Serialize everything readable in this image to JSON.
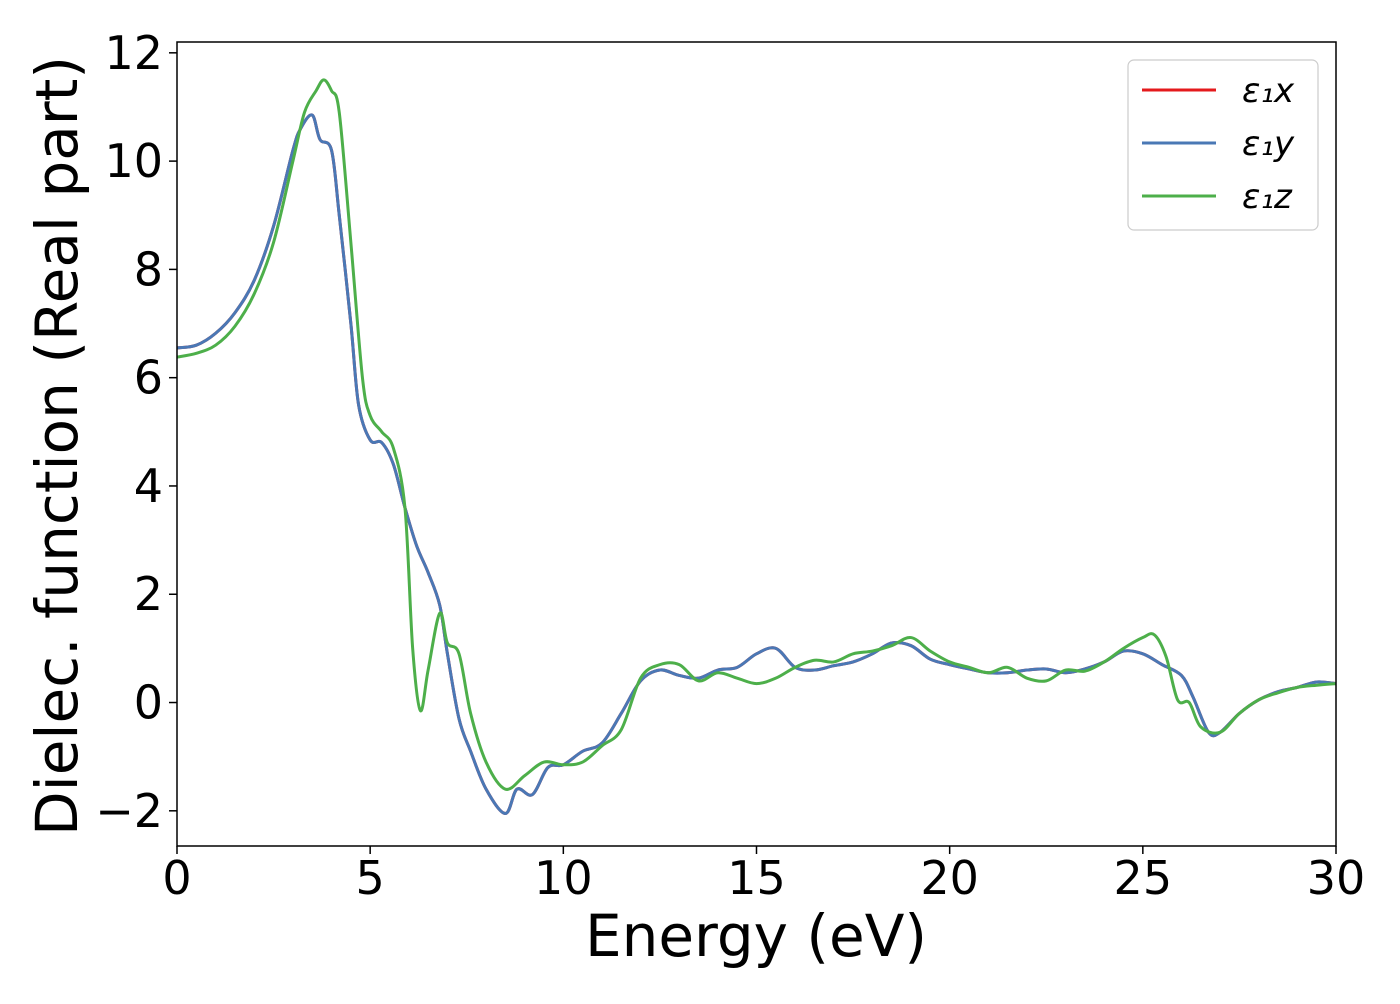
{
  "chart_data": {
    "type": "line",
    "title": "",
    "xlabel": "Energy (eV)",
    "ylabel": "Dielec. function (Real part)",
    "xlim": [
      0,
      30
    ],
    "ylim": [
      -2.65,
      12.2
    ],
    "xticks": [
      0,
      5,
      10,
      15,
      20,
      25,
      30
    ],
    "xtick_labels": [
      "0",
      "5",
      "10",
      "15",
      "20",
      "25",
      "30"
    ],
    "yticks": [
      -2,
      0,
      2,
      4,
      6,
      8,
      10,
      12
    ],
    "ytick_labels": [
      "−2",
      "0",
      "2",
      "4",
      "6",
      "8",
      "10",
      "12"
    ],
    "grid": false,
    "legend_position": "top-right",
    "series": [
      {
        "name": "ε₁x",
        "color": "#e41a1c",
        "x": [
          0,
          0.5,
          1,
          1.5,
          2,
          2.5,
          3,
          3.2,
          3.5,
          3.7,
          4.0,
          4.2,
          4.5,
          4.7,
          5.0,
          5.3,
          5.6,
          5.9,
          6.2,
          6.5,
          6.8,
          7.0,
          7.3,
          7.6,
          8.0,
          8.5,
          8.8,
          9.2,
          9.6,
          10.0,
          10.5,
          11.0,
          11.5,
          12.0,
          12.5,
          13.0,
          13.5,
          14.0,
          14.5,
          15.0,
          15.5,
          16.0,
          16.5,
          17.0,
          17.5,
          18.0,
          18.5,
          19.0,
          19.5,
          20.0,
          20.5,
          21.0,
          21.5,
          22.0,
          22.5,
          23.0,
          23.5,
          24.0,
          24.5,
          25.0,
          25.5,
          26.0,
          26.3,
          26.7,
          27.0,
          27.5,
          28.0,
          28.5,
          29.0,
          29.5,
          30.0
        ],
        "y": [
          6.55,
          6.6,
          6.82,
          7.2,
          7.8,
          8.8,
          10.2,
          10.6,
          10.85,
          10.4,
          10.2,
          9.0,
          7.0,
          5.5,
          4.85,
          4.8,
          4.4,
          3.6,
          2.9,
          2.4,
          1.8,
          0.9,
          -0.3,
          -0.9,
          -1.6,
          -2.05,
          -1.6,
          -1.7,
          -1.2,
          -1.15,
          -0.9,
          -0.75,
          -0.2,
          0.4,
          0.6,
          0.5,
          0.45,
          0.6,
          0.65,
          0.9,
          1.0,
          0.65,
          0.6,
          0.68,
          0.75,
          0.9,
          1.1,
          1.05,
          0.8,
          0.7,
          0.62,
          0.55,
          0.55,
          0.6,
          0.62,
          0.55,
          0.62,
          0.75,
          0.95,
          0.9,
          0.7,
          0.5,
          0.1,
          -0.55,
          -0.55,
          -0.2,
          0.05,
          0.2,
          0.28,
          0.38,
          0.35
        ]
      },
      {
        "name": "ε₁y",
        "color": "#4a78b5",
        "x": [
          0,
          0.5,
          1,
          1.5,
          2,
          2.5,
          3,
          3.2,
          3.5,
          3.7,
          4.0,
          4.2,
          4.5,
          4.7,
          5.0,
          5.3,
          5.6,
          5.9,
          6.2,
          6.5,
          6.8,
          7.0,
          7.3,
          7.6,
          8.0,
          8.5,
          8.8,
          9.2,
          9.6,
          10.0,
          10.5,
          11.0,
          11.5,
          12.0,
          12.5,
          13.0,
          13.5,
          14.0,
          14.5,
          15.0,
          15.5,
          16.0,
          16.5,
          17.0,
          17.5,
          18.0,
          18.5,
          19.0,
          19.5,
          20.0,
          20.5,
          21.0,
          21.5,
          22.0,
          22.5,
          23.0,
          23.5,
          24.0,
          24.5,
          25.0,
          25.5,
          26.0,
          26.3,
          26.7,
          27.0,
          27.5,
          28.0,
          28.5,
          29.0,
          29.5,
          30.0
        ],
        "y": [
          6.55,
          6.6,
          6.82,
          7.2,
          7.8,
          8.8,
          10.2,
          10.6,
          10.85,
          10.4,
          10.2,
          9.0,
          7.0,
          5.5,
          4.85,
          4.8,
          4.4,
          3.6,
          2.9,
          2.4,
          1.8,
          0.9,
          -0.3,
          -0.9,
          -1.6,
          -2.05,
          -1.6,
          -1.7,
          -1.2,
          -1.15,
          -0.9,
          -0.75,
          -0.2,
          0.4,
          0.6,
          0.5,
          0.45,
          0.6,
          0.65,
          0.9,
          1.0,
          0.65,
          0.6,
          0.68,
          0.75,
          0.9,
          1.1,
          1.05,
          0.8,
          0.7,
          0.62,
          0.55,
          0.55,
          0.6,
          0.62,
          0.55,
          0.62,
          0.75,
          0.95,
          0.9,
          0.7,
          0.5,
          0.1,
          -0.55,
          -0.55,
          -0.2,
          0.05,
          0.2,
          0.28,
          0.38,
          0.35
        ]
      },
      {
        "name": "ε₁z",
        "color": "#4daf4a",
        "x": [
          0,
          0.5,
          1,
          1.5,
          2,
          2.5,
          3,
          3.3,
          3.6,
          3.8,
          4.0,
          4.2,
          4.5,
          4.8,
          5.0,
          5.3,
          5.6,
          5.9,
          6.1,
          6.3,
          6.5,
          6.8,
          7.0,
          7.3,
          7.6,
          8.0,
          8.5,
          9.0,
          9.5,
          10.0,
          10.5,
          11.0,
          11.5,
          12.0,
          12.5,
          13.0,
          13.5,
          14.0,
          14.5,
          15.0,
          15.5,
          16.0,
          16.5,
          17.0,
          17.5,
          18.0,
          18.5,
          19.0,
          19.5,
          20.0,
          20.5,
          21.0,
          21.5,
          22.0,
          22.5,
          23.0,
          23.5,
          24.0,
          24.5,
          25.0,
          25.3,
          25.6,
          25.9,
          26.2,
          26.5,
          27.0,
          27.5,
          28.0,
          28.5,
          29.0,
          29.5,
          30.0
        ],
        "y": [
          6.38,
          6.45,
          6.6,
          6.95,
          7.55,
          8.5,
          10.0,
          10.9,
          11.3,
          11.5,
          11.3,
          10.9,
          8.5,
          6.0,
          5.3,
          5.0,
          4.7,
          3.6,
          1.0,
          -0.15,
          0.6,
          1.65,
          1.1,
          0.9,
          -0.2,
          -1.1,
          -1.6,
          -1.35,
          -1.1,
          -1.15,
          -1.1,
          -0.8,
          -0.5,
          0.45,
          0.7,
          0.7,
          0.4,
          0.55,
          0.45,
          0.35,
          0.45,
          0.65,
          0.78,
          0.75,
          0.9,
          0.95,
          1.05,
          1.2,
          0.95,
          0.75,
          0.65,
          0.55,
          0.65,
          0.45,
          0.4,
          0.6,
          0.58,
          0.75,
          1.0,
          1.2,
          1.25,
          0.85,
          0.05,
          0.0,
          -0.45,
          -0.55,
          -0.2,
          0.05,
          0.18,
          0.28,
          0.32,
          0.35
        ]
      }
    ]
  }
}
